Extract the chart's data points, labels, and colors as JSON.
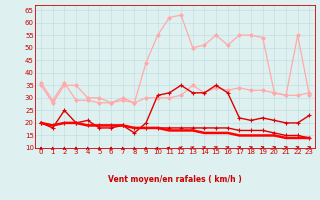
{
  "bg_color": "#dff0f0",
  "xlabel": "Vent moyen/en rafales ( km/h )",
  "xlim": [
    -0.5,
    23.5
  ],
  "ylim": [
    10,
    67
  ],
  "yticks": [
    10,
    15,
    20,
    25,
    30,
    35,
    40,
    45,
    50,
    55,
    60,
    65
  ],
  "ytick_labels": [
    "10",
    "15",
    "20",
    "25",
    "30",
    "35",
    "40",
    "45",
    "50",
    "55",
    "60",
    "65"
  ],
  "xticks": [
    0,
    1,
    2,
    3,
    4,
    5,
    6,
    7,
    8,
    9,
    10,
    11,
    12,
    13,
    14,
    15,
    16,
    17,
    18,
    19,
    20,
    21,
    22,
    23
  ],
  "x": [
    0,
    1,
    2,
    3,
    4,
    5,
    6,
    7,
    8,
    9,
    10,
    11,
    12,
    13,
    14,
    15,
    16,
    17,
    18,
    19,
    20,
    21,
    22,
    23
  ],
  "series": [
    {
      "color": "#ffaaaa",
      "lw": 0.9,
      "marker": "D",
      "ms": 1.8,
      "data": [
        35,
        28,
        35,
        35,
        30,
        30,
        28,
        30,
        28,
        30,
        30,
        30,
        31,
        35,
        32,
        34,
        33,
        34,
        33,
        33,
        32,
        31,
        31,
        32
      ]
    },
    {
      "color": "#ffaaaa",
      "lw": 0.9,
      "marker": "D",
      "ms": 1.8,
      "data": [
        36,
        29,
        36,
        29,
        29,
        28,
        28,
        29,
        28,
        44,
        55,
        62,
        63,
        50,
        51,
        55,
        51,
        55,
        55,
        54,
        32,
        31,
        55,
        31
      ]
    },
    {
      "color": "#dd0000",
      "lw": 1.0,
      "marker": "+",
      "ms": 3.0,
      "data": [
        20,
        18,
        25,
        20,
        21,
        18,
        18,
        19,
        16,
        20,
        31,
        32,
        35,
        32,
        32,
        35,
        32,
        22,
        21,
        22,
        21,
        20,
        20,
        23
      ]
    },
    {
      "color": "#dd0000",
      "lw": 1.0,
      "marker": "+",
      "ms": 3.0,
      "data": [
        20,
        19,
        20,
        20,
        19,
        19,
        19,
        19,
        18,
        18,
        18,
        18,
        18,
        18,
        18,
        18,
        18,
        17,
        17,
        17,
        16,
        15,
        15,
        14
      ]
    },
    {
      "color": "#ff0000",
      "lw": 1.8,
      "marker": null,
      "ms": 0,
      "data": [
        20,
        19,
        20,
        20,
        19,
        19,
        19,
        19,
        18,
        18,
        18,
        17,
        17,
        17,
        16,
        16,
        16,
        15,
        15,
        15,
        15,
        14,
        14,
        14
      ]
    }
  ],
  "arrow_angles": [
    90,
    90,
    90,
    90,
    90,
    90,
    90,
    90,
    90,
    85,
    75,
    65,
    55,
    48,
    42,
    38,
    33,
    28,
    25,
    25,
    25,
    25,
    25,
    25
  ],
  "grid_color": "#bbdddd",
  "tick_color": "#cc0000",
  "spine_color": "#cc0000",
  "xlabel_color": "#cc0000",
  "tick_fontsize": 5,
  "xlabel_fontsize": 5.5
}
